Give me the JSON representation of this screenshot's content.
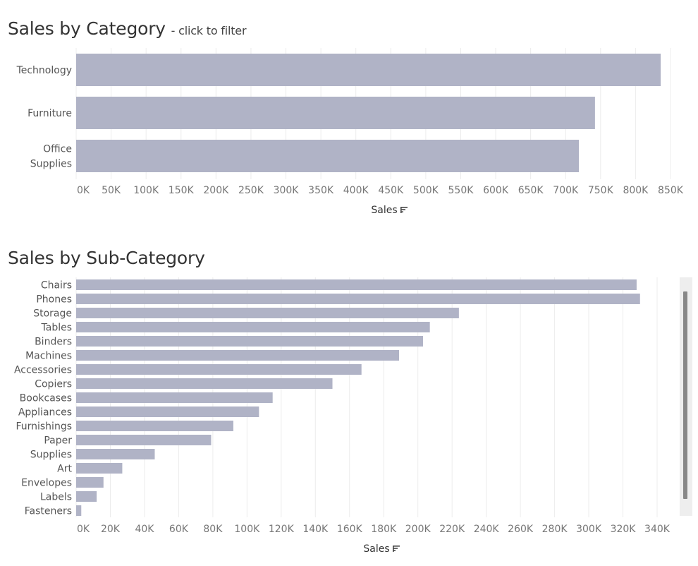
{
  "chart_data": [
    {
      "type": "bar",
      "orientation": "horizontal",
      "title": "Sales by Category",
      "subtitle": "- click to filter",
      "categories": [
        "Technology",
        "Furniture",
        "Office Supplies"
      ],
      "category_lines": [
        [
          "Technology"
        ],
        [
          "Furniture"
        ],
        [
          "Office",
          "Supplies"
        ]
      ],
      "values": [
        836000,
        742000,
        719000
      ],
      "xlabel": "Sales",
      "xlim": [
        0,
        850000
      ],
      "xticks": [
        0,
        50000,
        100000,
        150000,
        200000,
        250000,
        300000,
        350000,
        400000,
        450000,
        500000,
        550000,
        600000,
        650000,
        700000,
        750000,
        800000,
        850000
      ],
      "xtick_labels": [
        "0K",
        "50K",
        "100K",
        "150K",
        "200K",
        "250K",
        "300K",
        "350K",
        "400K",
        "450K",
        "500K",
        "550K",
        "600K",
        "650K",
        "700K",
        "750K",
        "800K",
        "850K"
      ],
      "grid": true,
      "bar_color": "#b0b3c6",
      "sort_icon": "sort-descending-icon"
    },
    {
      "type": "bar",
      "orientation": "horizontal",
      "title": "Sales by Sub-Category",
      "categories": [
        "Chairs",
        "Phones",
        "Storage",
        "Tables",
        "Binders",
        "Machines",
        "Accessories",
        "Copiers",
        "Bookcases",
        "Appliances",
        "Furnishings",
        "Paper",
        "Supplies",
        "Art",
        "Envelopes",
        "Labels",
        "Fasteners"
      ],
      "values": [
        328000,
        330000,
        224000,
        207000,
        203000,
        189000,
        167000,
        150000,
        115000,
        107000,
        92000,
        79000,
        46000,
        27000,
        16000,
        12000,
        3000
      ],
      "xlabel": "Sales",
      "xlim": [
        0,
        340000
      ],
      "xticks": [
        0,
        20000,
        40000,
        60000,
        80000,
        100000,
        120000,
        140000,
        160000,
        180000,
        200000,
        220000,
        240000,
        260000,
        280000,
        300000,
        320000,
        340000
      ],
      "xtick_labels": [
        "0K",
        "20K",
        "40K",
        "60K",
        "80K",
        "100K",
        "120K",
        "140K",
        "160K",
        "180K",
        "200K",
        "220K",
        "240K",
        "260K",
        "280K",
        "300K",
        "320K",
        "340K"
      ],
      "grid": true,
      "bar_color": "#b0b3c6",
      "sort_icon": "sort-descending-icon"
    }
  ]
}
